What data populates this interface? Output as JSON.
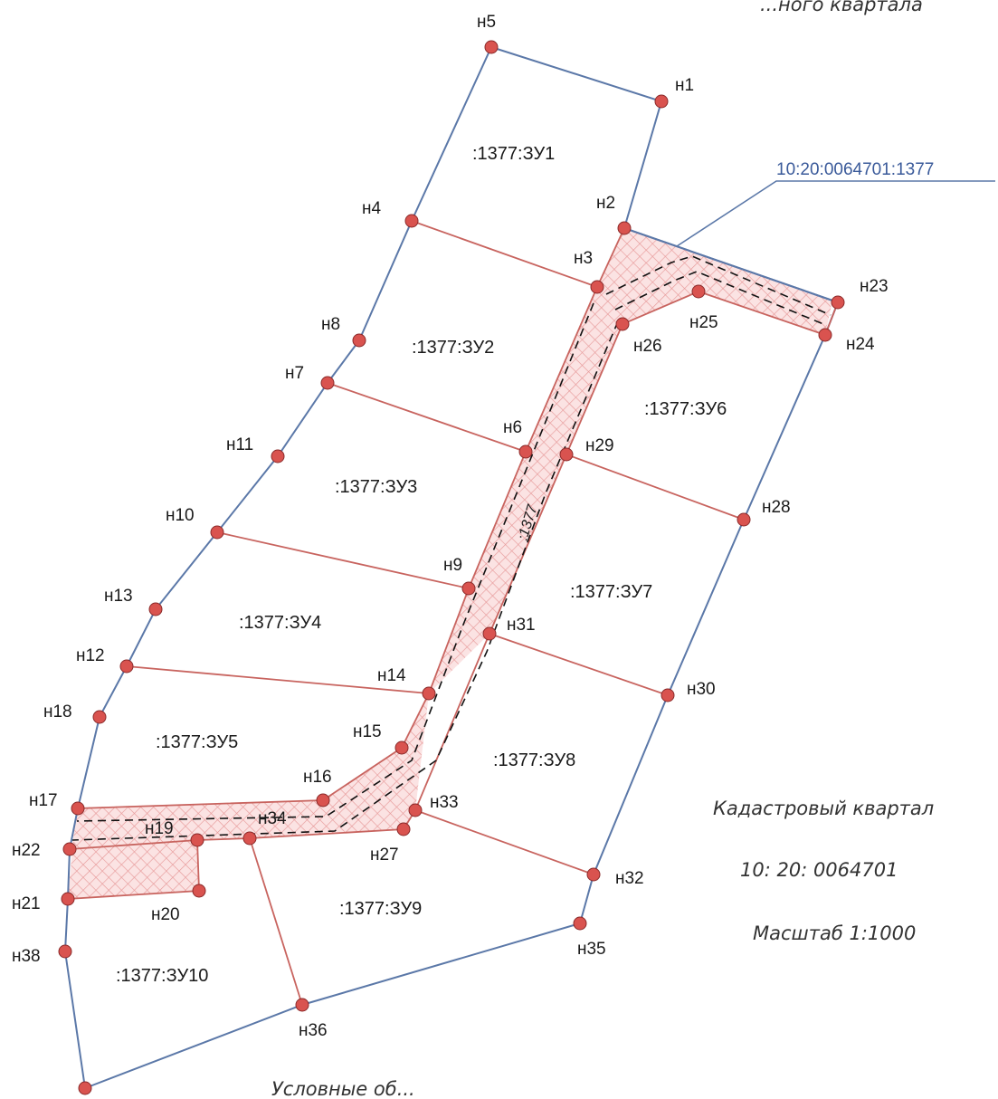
{
  "top_right_fragment": "...ного квартала",
  "cadastral_number_callout": "10:20:0064701:1377",
  "parcel_labels": {
    "zu1": ":1377:ЗУ1",
    "zu2": ":1377:ЗУ2",
    "zu3": ":1377:ЗУ3",
    "zu4": ":1377:ЗУ4",
    "zu5": ":1377:ЗУ5",
    "zu6": ":1377:ЗУ6",
    "zu7": ":1377:ЗУ7",
    "zu8": ":1377:ЗУ8",
    "zu9": ":1377:ЗУ9",
    "zu10": ":1377:ЗУ10"
  },
  "road_label": ":1377",
  "points": {
    "n1": "н1",
    "n2": "н2",
    "n3": "н3",
    "n4": "н4",
    "n5": "н5",
    "n6": "н6",
    "n7": "н7",
    "n8": "н8",
    "n9": "н9",
    "n10": "н10",
    "n11": "н11",
    "n12": "н12",
    "n13": "н13",
    "n14": "н14",
    "n15": "н15",
    "n16": "н16",
    "n17": "н17",
    "n18": "н18",
    "n19": "н19",
    "n20": "н20",
    "n21": "н21",
    "n22": "н22",
    "n23": "н23",
    "n24": "н24",
    "n25": "н25",
    "n26": "н26",
    "n27": "н27",
    "n28": "н28",
    "n29": "н29",
    "n30": "н30",
    "n31": "н31",
    "n32": "н32",
    "n33": "н33",
    "n34": "н34",
    "n35": "н35",
    "n36": "н36",
    "n38": "н38"
  },
  "legend": {
    "quarter_title": "Кадастровый квартал",
    "quarter_number": "10: 20: 0064701",
    "scale": "Масштаб 1:1000",
    "bottom_fragment": "Условные об..."
  },
  "colors": {
    "existing_boundary": "#5b78a8",
    "new_boundary": "#c8645f",
    "point_fill": "#d9534f",
    "hatch": "#f2b8b8",
    "callout_text": "#3a5a9a"
  }
}
